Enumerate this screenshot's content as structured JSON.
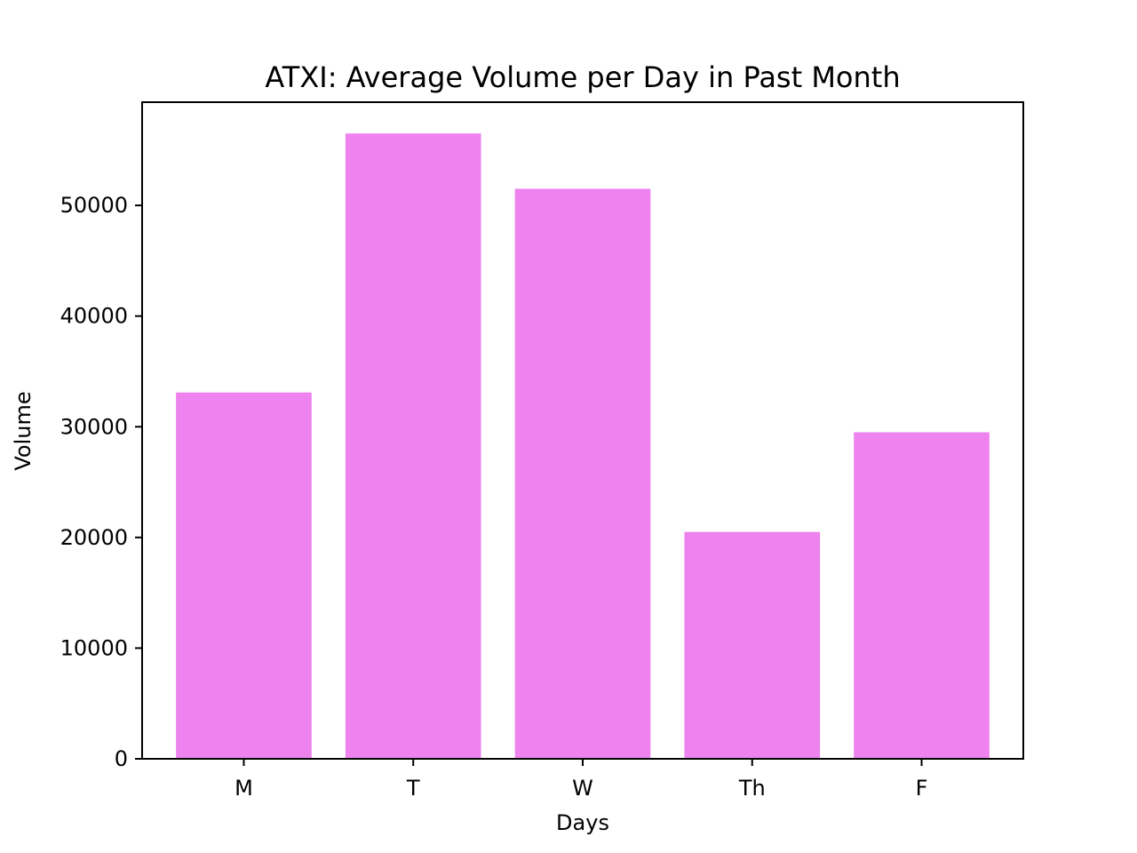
{
  "chart_data": {
    "type": "bar",
    "title": "ATXI: Average Volume per Day in Past Month",
    "xlabel": "Days",
    "ylabel": "Volume",
    "categories": [
      "M",
      "T",
      "W",
      "Th",
      "F"
    ],
    "values": [
      33100,
      56500,
      51500,
      20500,
      29500
    ],
    "ylim": [
      0,
      59325
    ],
    "yticks": [
      0,
      10000,
      20000,
      30000,
      40000,
      50000
    ],
    "bar_color": "#ee82ee",
    "grid": false,
    "legend": "none"
  }
}
